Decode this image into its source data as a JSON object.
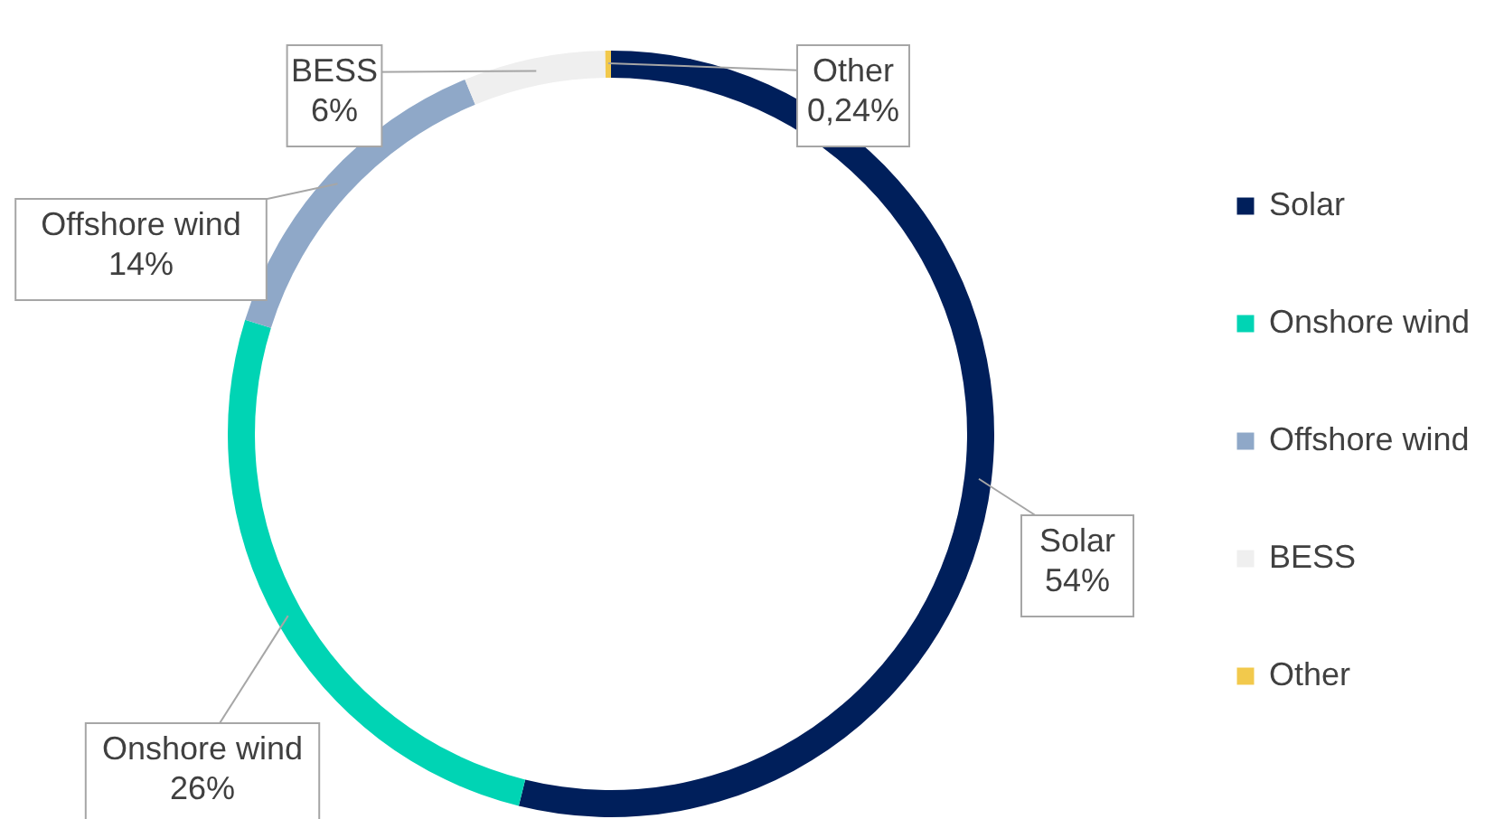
{
  "chart_data": {
    "type": "donut",
    "categories": [
      "Solar",
      "Onshore wind",
      "Offshore wind",
      "BESS",
      "Other"
    ],
    "values": [
      54,
      26,
      14,
      6,
      0.24
    ],
    "value_labels": [
      "54%",
      "26%",
      "14%",
      "6%",
      "0,24%"
    ],
    "colors": [
      "#001f5b",
      "#00d4b4",
      "#8fa8c8",
      "#efefef",
      "#f2c94c"
    ],
    "legend": "right"
  }
}
